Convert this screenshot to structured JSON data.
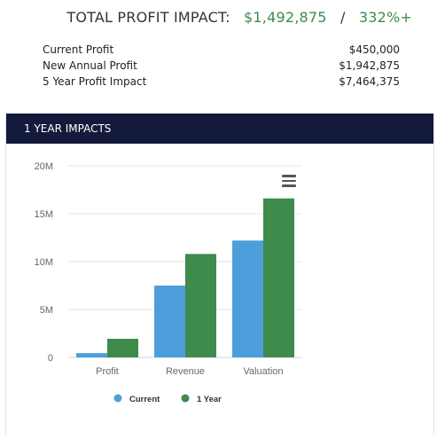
{
  "summary": {
    "title": "TOTAL PROFIT IMPACT:",
    "total": "$1,492,875",
    "separator": "/",
    "percent": "332%+",
    "rows": [
      {
        "label": "Current Profit",
        "value": "$450,000"
      },
      {
        "label": "New Annual Profit",
        "value": "$1,942,875"
      },
      {
        "label": "5 Year Profit Impact",
        "value": "$7,464,375"
      }
    ]
  },
  "panel": {
    "title": "1 YEAR IMPACTS"
  },
  "colors": {
    "current": "#4c9fdb",
    "one_year": "#3e8b4c",
    "header_bg": "#141a3b",
    "headline_green": "#3e8b4c"
  },
  "chart_data": {
    "type": "bar",
    "categories": [
      "Profit",
      "Revenue",
      "Valuation"
    ],
    "series": [
      {
        "name": "Current",
        "values": [
          450000,
          7500000,
          12200000
        ]
      },
      {
        "name": "1 Year",
        "values": [
          1942875,
          10800000,
          16600000
        ]
      }
    ],
    "yticks": [
      "0",
      "5M",
      "10M",
      "15M",
      "20M"
    ],
    "ylim": [
      0,
      20000000
    ],
    "grid": true,
    "legend": "bottom-center"
  },
  "icons": {
    "menu": "hamburger-menu-icon"
  }
}
